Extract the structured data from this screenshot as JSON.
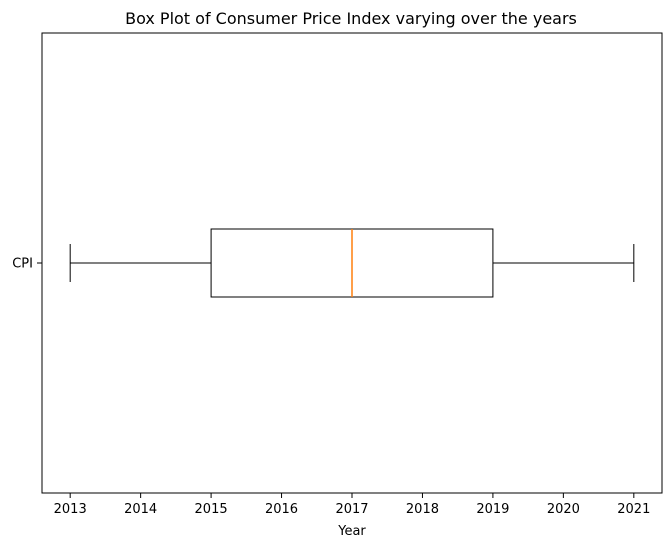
{
  "chart_data": {
    "type": "box",
    "title": "Box Plot of Consumer Price Index varying over the years",
    "xlabel": "Year",
    "ylabel": "",
    "orientation": "horizontal",
    "xlim": [
      2012.6,
      2021.4
    ],
    "xticks": [
      2013,
      2014,
      2015,
      2016,
      2017,
      2018,
      2019,
      2020,
      2021
    ],
    "categories": [
      "CPI"
    ],
    "boxes": [
      {
        "label": "CPI",
        "whisker_low": 2013,
        "q1": 2015,
        "median": 2017,
        "q3": 2019,
        "whisker_high": 2021
      }
    ],
    "grid": false,
    "colors": {
      "box": "#000000",
      "median": "#ff7f0e",
      "whisker": "#000000"
    }
  }
}
